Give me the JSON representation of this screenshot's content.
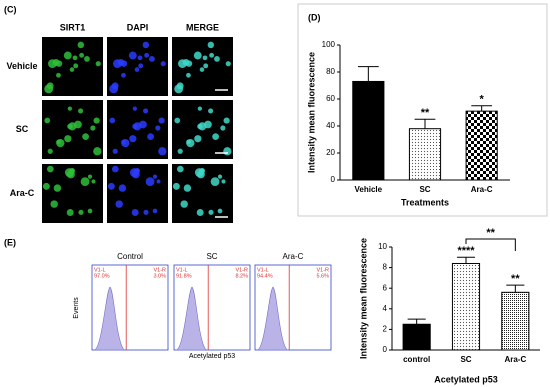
{
  "panel_labels": [
    "(C)",
    "(D)",
    "(E)"
  ],
  "microscopy": {
    "columns": [
      "SIRT1",
      "DAPI",
      "MERGE"
    ],
    "rows": [
      "Vehicle",
      "SC",
      "Ara-C"
    ]
  },
  "flow": {
    "y_label": "Events",
    "x_label": "Acetylated p53",
    "panels": [
      {
        "title": "Control",
        "gate_left": "V1-L",
        "gate_right": "V1-R",
        "left": "97.0%",
        "right": "3.0%"
      },
      {
        "title": "SC",
        "gate_left": "V1-L",
        "gate_right": "V1-R",
        "left": "91.8%",
        "right": "8.2%"
      },
      {
        "title": "Ara-C",
        "gate_left": "V1-L",
        "gate_right": "V1-R",
        "left": "94.4%",
        "right": "5.6%"
      }
    ]
  },
  "chart_data": [
    {
      "type": "bar",
      "y_label": "Intensity mean fluorescence",
      "x_label": "Treatments",
      "categories": [
        "Vehicle",
        "SC",
        "Ara-C"
      ],
      "values": [
        73,
        38,
        51
      ],
      "errors": [
        11,
        7,
        4
      ],
      "fills": [
        "solid",
        "dots",
        "checker"
      ],
      "color": "#000000",
      "significance": [
        null,
        "**",
        "*"
      ],
      "ylim": [
        0,
        100
      ],
      "yticks": [
        0,
        20,
        40,
        60,
        80,
        100
      ]
    },
    {
      "type": "bar",
      "y_label": "Intensity mean fluorescence",
      "x_label": "Acetylated p53",
      "categories": [
        "control",
        "SC",
        "Ara-C"
      ],
      "values": [
        2.5,
        8.4,
        5.6
      ],
      "errors": [
        0.5,
        0.6,
        0.7
      ],
      "fills": [
        "solid",
        "dots",
        "fine-dots"
      ],
      "color": "#000000",
      "significance": [
        null,
        "****",
        "**"
      ],
      "comparison": {
        "between": [
          "SC",
          "Ara-C"
        ],
        "label": "**"
      },
      "ylim": [
        0,
        10
      ],
      "yticks": [
        0,
        2,
        4,
        6,
        8,
        10
      ]
    }
  ]
}
